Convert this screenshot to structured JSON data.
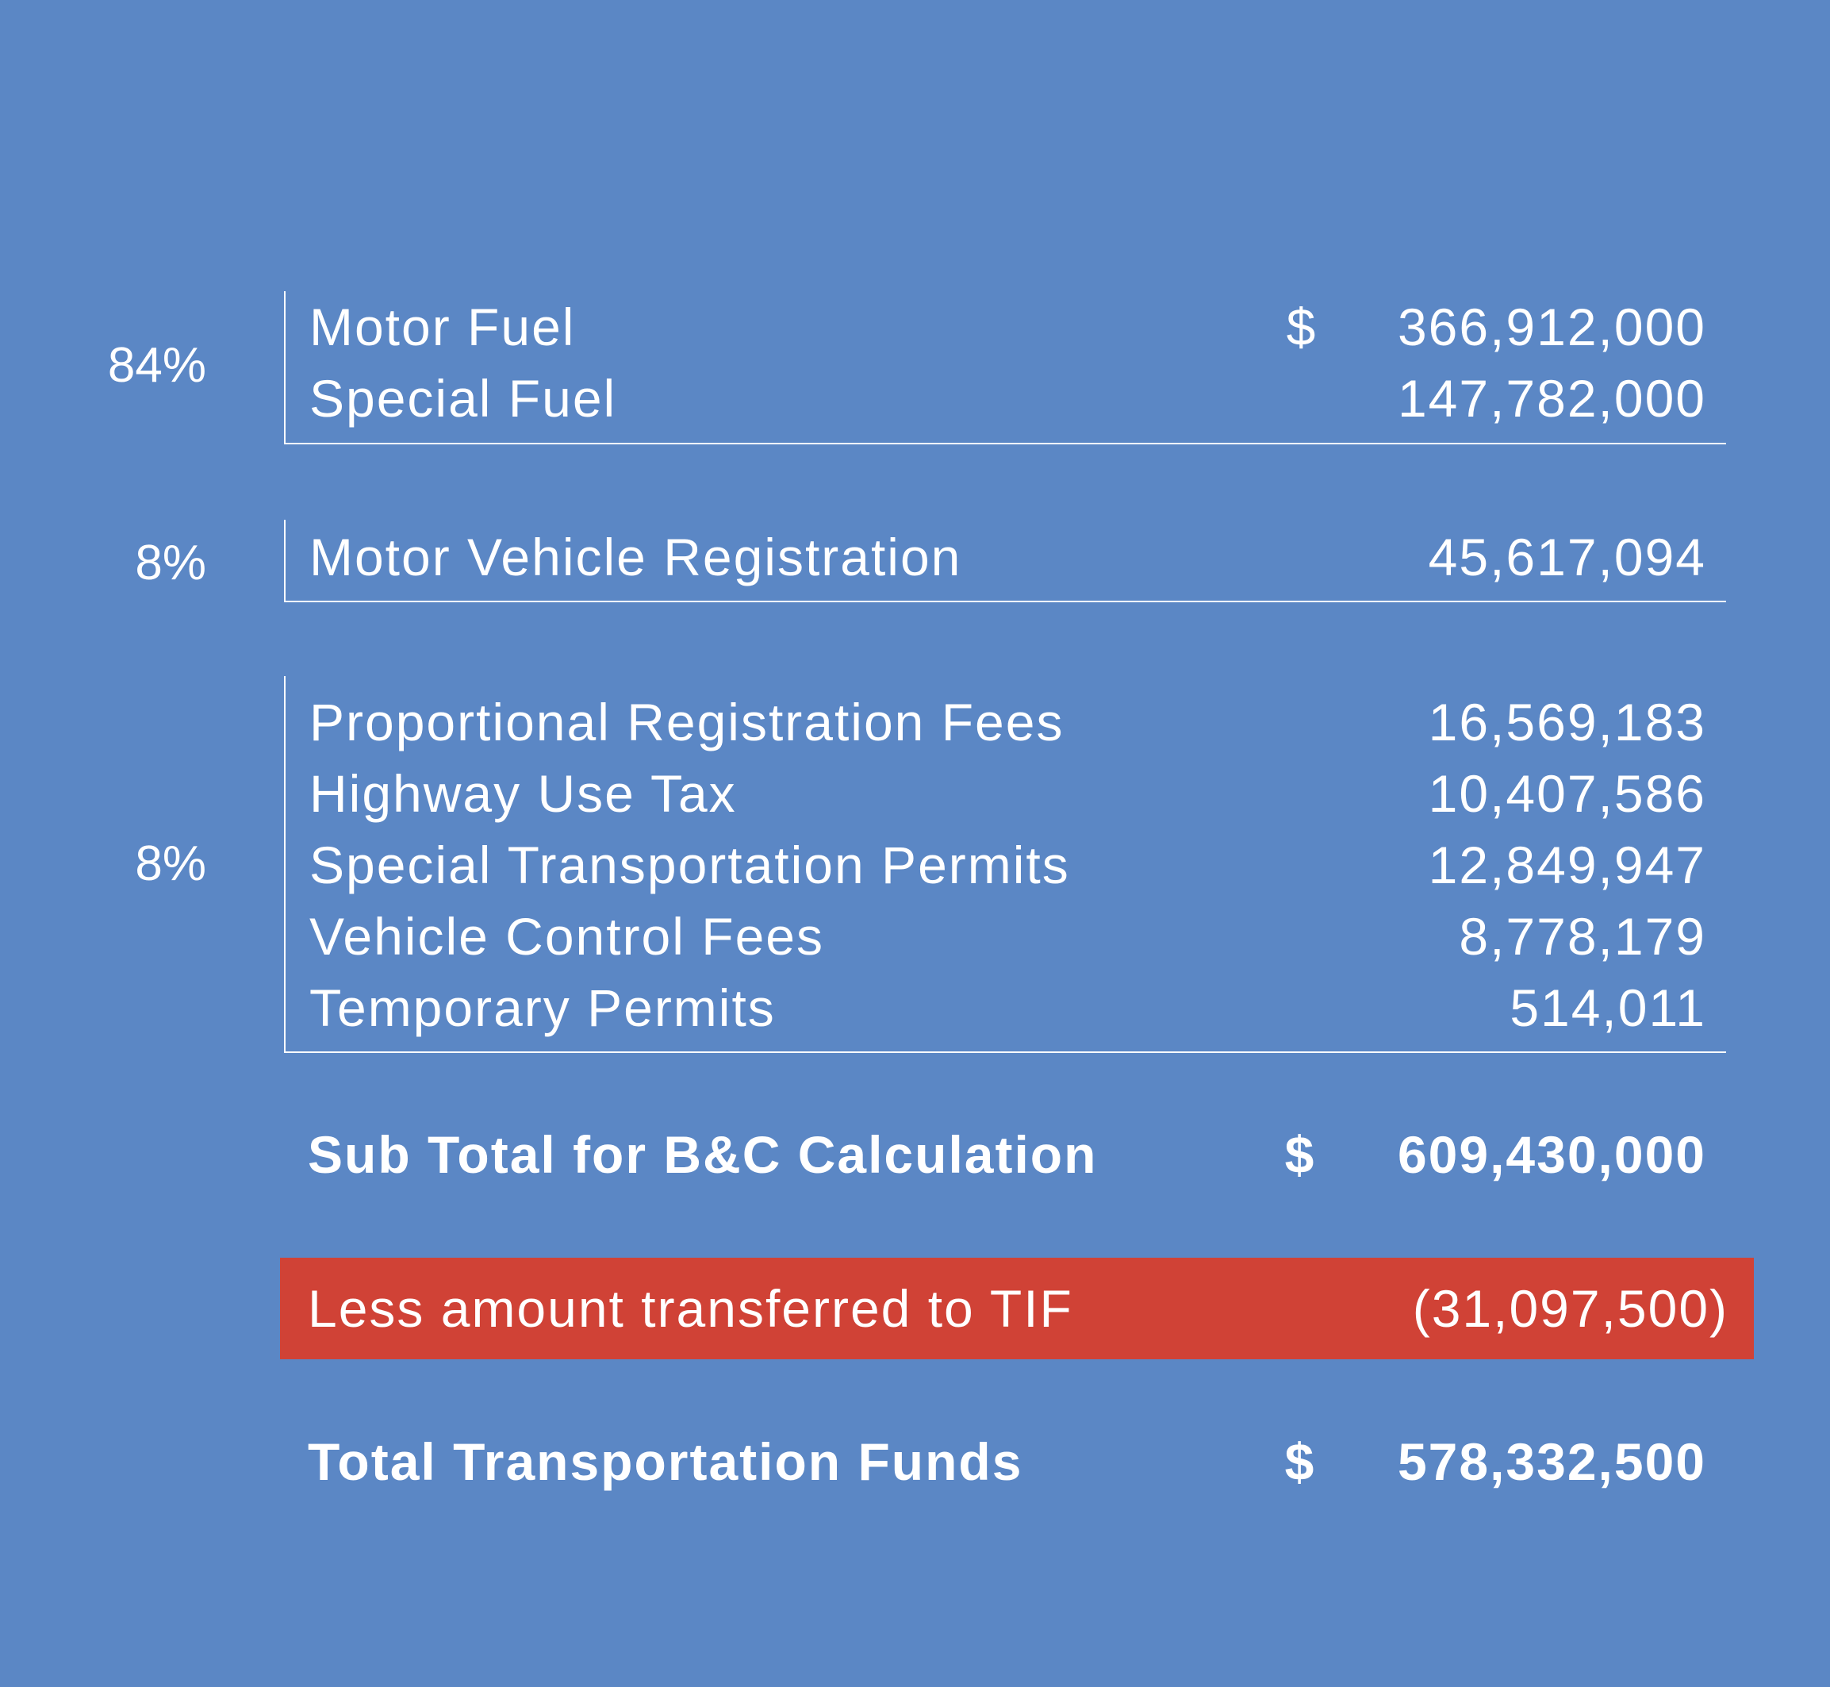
{
  "groups": [
    {
      "percent": "84%",
      "rows": [
        {
          "label": "Motor Fuel",
          "currency": "$",
          "amount": "366,912,000"
        },
        {
          "label": "Special Fuel",
          "currency": "",
          "amount": "147,782,000"
        }
      ]
    },
    {
      "percent": "8%",
      "rows": [
        {
          "label": "Motor Vehicle Registration",
          "currency": "",
          "amount": "45,617,094"
        }
      ]
    },
    {
      "percent": "8%",
      "rows": [
        {
          "label": "Proportional Registration Fees",
          "currency": "",
          "amount": "16,569,183"
        },
        {
          "label": "Highway Use Tax",
          "currency": "",
          "amount": "10,407,586"
        },
        {
          "label": "Special Transportation Permits",
          "currency": "",
          "amount": "12,849,947"
        },
        {
          "label": "Vehicle Control Fees",
          "currency": "",
          "amount": "8,778,179"
        },
        {
          "label": "Temporary Permits",
          "currency": "",
          "amount": "514,011"
        }
      ]
    }
  ],
  "subtotal": {
    "label": "Sub Total for B&C Calculation",
    "currency": "$",
    "amount": "609,430,000"
  },
  "tif": {
    "label": "Less amount transferred to TIF",
    "amount": "(31,097,500)",
    "color": "#d04236"
  },
  "total": {
    "label": "Total Transportation Funds",
    "currency": "$",
    "amount": "578,332,500"
  },
  "colors": {
    "background": "#5b87c5",
    "text": "#ffffff"
  }
}
